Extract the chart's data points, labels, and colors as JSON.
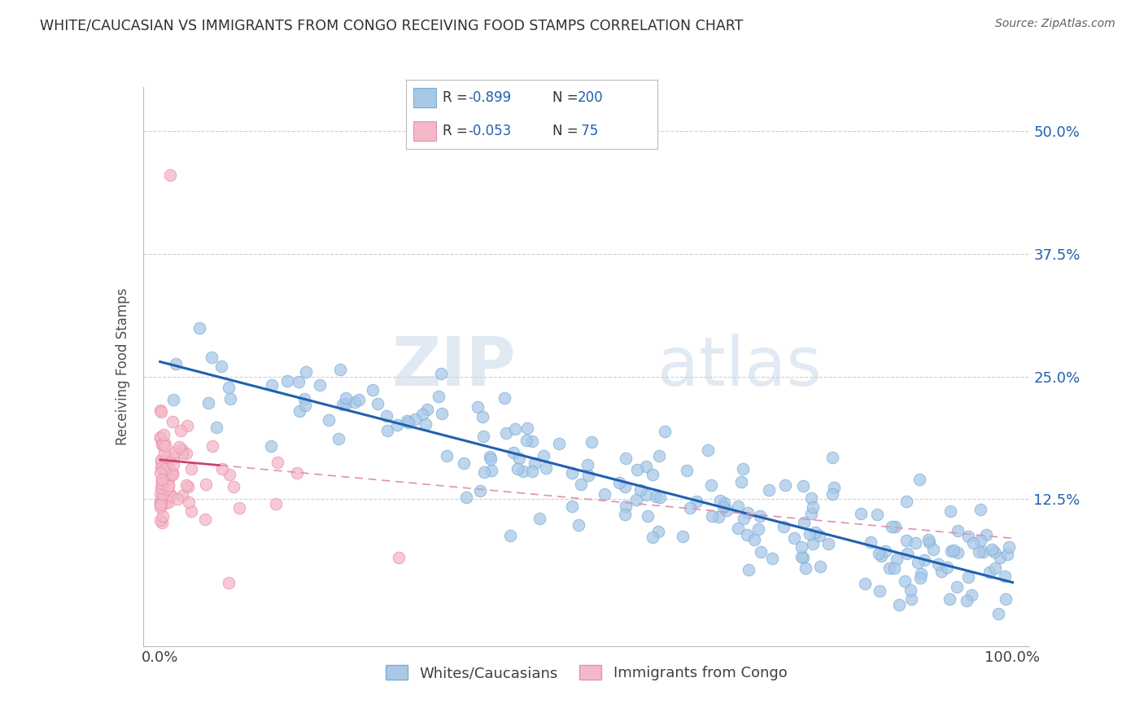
{
  "title": "WHITE/CAUCASIAN VS IMMIGRANTS FROM CONGO RECEIVING FOOD STAMPS CORRELATION CHART",
  "source": "Source: ZipAtlas.com",
  "ylabel": "Receiving Food Stamps",
  "xlim": [
    -0.02,
    1.02
  ],
  "ylim": [
    -0.025,
    0.545
  ],
  "blue_color": "#a8c8e8",
  "blue_edge": "#7aaed4",
  "pink_color": "#f4b8c8",
  "pink_edge": "#e890a8",
  "blue_line_color": "#2060b0",
  "pink_line_color": "#d04070",
  "pink_line_dash_color": "#e090b0",
  "legend_label1": "Whites/Caucasians",
  "legend_label2": "Immigrants from Congo",
  "grid_color": "#d0d0d0",
  "title_color": "#303030",
  "tick_color_right": "#2060b0",
  "background_color": "#ffffff",
  "watermark_color": "#ccd8ec",
  "blue_intercept": 0.265,
  "blue_slope": -0.225,
  "pink_intercept": 0.165,
  "pink_slope": -0.08
}
